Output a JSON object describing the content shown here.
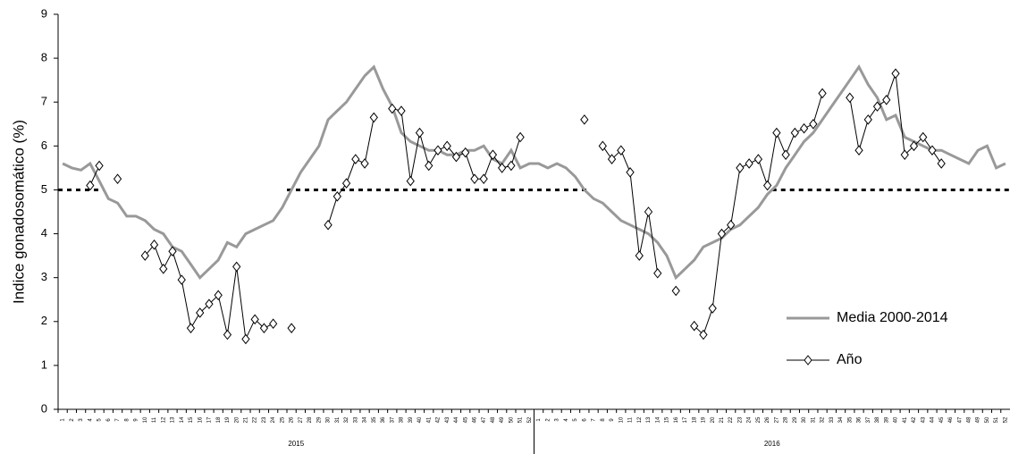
{
  "chart_data": {
    "type": "line",
    "y_label": "Indice gonadosomático (%)",
    "categories": [
      "1",
      "2",
      "3",
      "4",
      "5",
      "6",
      "7",
      "8",
      "9",
      "10",
      "11",
      "12",
      "13",
      "14",
      "15",
      "16",
      "17",
      "18",
      "19",
      "20",
      "21",
      "22",
      "23",
      "24",
      "25",
      "26",
      "27",
      "28",
      "29",
      "30",
      "31",
      "32",
      "33",
      "34",
      "35",
      "36",
      "37",
      "38",
      "39",
      "40",
      "41",
      "42",
      "43",
      "44",
      "45",
      "46",
      "47",
      "48",
      "49",
      "50",
      "51",
      "52",
      "1",
      "2",
      "3",
      "4",
      "5",
      "6",
      "7",
      "8",
      "9",
      "10",
      "11",
      "12",
      "13",
      "14",
      "15",
      "16",
      "17",
      "18",
      "19",
      "20",
      "21",
      "22",
      "23",
      "24",
      "25",
      "26",
      "27",
      "28",
      "29",
      "30",
      "31",
      "32",
      "33",
      "34",
      "35",
      "36",
      "37",
      "38",
      "39",
      "40",
      "41",
      "42",
      "43",
      "44",
      "45",
      "46",
      "47",
      "48",
      "49",
      "50",
      "51",
      "52"
    ],
    "groups": [
      "2015",
      "2016"
    ],
    "series": [
      {
        "name": "Media 2000-2014",
        "color": "#999999",
        "values": [
          5.6,
          5.5,
          5.45,
          5.6,
          5.2,
          4.8,
          4.7,
          4.4,
          4.4,
          4.3,
          4.1,
          4.0,
          3.7,
          3.6,
          3.3,
          3.0,
          3.2,
          3.4,
          3.8,
          3.7,
          4.0,
          4.1,
          4.2,
          4.3,
          4.6,
          5.0,
          5.4,
          5.7,
          6.0,
          6.6,
          6.8,
          7.0,
          7.3,
          7.6,
          7.8,
          7.3,
          6.9,
          6.3,
          6.1,
          6.0,
          5.9,
          5.9,
          5.8,
          5.8,
          5.9,
          5.9,
          6.0,
          5.7,
          5.6,
          5.9,
          5.5,
          5.6,
          5.6,
          5.5,
          5.6,
          5.5,
          5.3,
          5.0,
          4.8,
          4.7,
          4.5,
          4.3,
          4.2,
          4.1,
          4.0,
          3.8,
          3.5,
          3.0,
          3.2,
          3.4,
          3.7,
          3.8,
          3.9,
          4.1,
          4.2,
          4.4,
          4.6,
          4.9,
          5.1,
          5.5,
          5.8,
          6.1,
          6.3,
          6.6,
          6.9,
          7.2,
          7.5,
          7.8,
          7.4,
          7.1,
          6.6,
          6.7,
          6.2,
          6.1,
          6.0,
          5.9,
          5.9,
          5.8,
          5.7,
          5.6,
          5.9,
          6.0,
          5.5,
          5.6
        ]
      },
      {
        "name": "Año",
        "color": "#000000",
        "marker": "diamond",
        "values": [
          null,
          null,
          null,
          5.1,
          5.55,
          null,
          5.25,
          null,
          null,
          3.5,
          3.75,
          3.2,
          3.6,
          2.95,
          1.85,
          2.2,
          2.4,
          2.6,
          1.7,
          3.25,
          1.6,
          2.05,
          1.85,
          1.95,
          null,
          1.85,
          null,
          null,
          null,
          4.2,
          4.85,
          5.15,
          5.7,
          5.6,
          6.65,
          null,
          6.85,
          6.8,
          5.2,
          6.3,
          5.55,
          5.9,
          6.0,
          5.75,
          5.85,
          5.25,
          5.25,
          5.8,
          5.5,
          5.55,
          6.2,
          null,
          null,
          null,
          null,
          null,
          null,
          6.6,
          null,
          6.0,
          5.7,
          5.9,
          5.4,
          3.5,
          4.5,
          3.1,
          null,
          2.7,
          null,
          1.9,
          1.7,
          2.3,
          4.0,
          4.2,
          5.5,
          5.6,
          5.7,
          5.1,
          6.3,
          5.8,
          6.3,
          6.4,
          6.5,
          7.2,
          null,
          null,
          7.1,
          5.9,
          6.6,
          6.9,
          7.05,
          7.65,
          5.8,
          6.0,
          6.2,
          5.9,
          5.6,
          null,
          null,
          null,
          null,
          null,
          null,
          null
        ]
      }
    ],
    "threshold": 5,
    "ylim": [
      0,
      9
    ],
    "yticks": [
      0,
      1,
      2,
      3,
      4,
      5,
      6,
      7,
      8,
      9
    ],
    "legend": "right"
  }
}
